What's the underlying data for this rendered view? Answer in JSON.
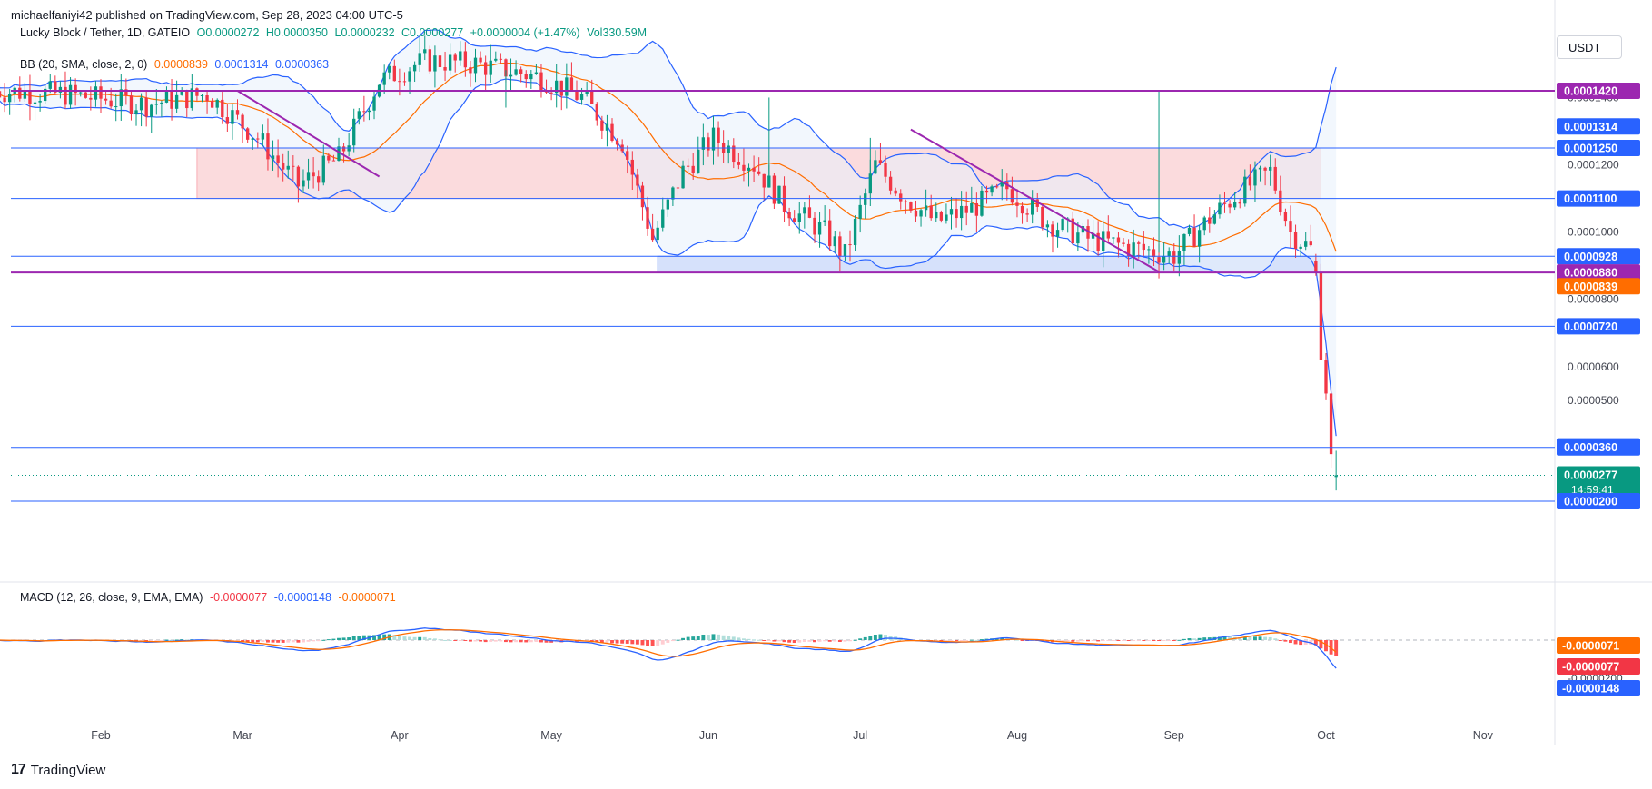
{
  "header": {
    "publisher": "michaelfaniyi42 published on TradingView.com, Sep 28, 2023 04:00 UTC-5"
  },
  "legend": {
    "symbol": "Lucky Block / Tether, 1D, GATEIO",
    "open": "O0.0000272",
    "high": "H0.0000350",
    "low": "L0.0000232",
    "close": "C0.0000277",
    "change": "+0.0000004 (+1.47%)",
    "volume": "Vol330.59M",
    "bb_label": "BB (20, SMA, close, 2, 0)",
    "bb_basis": "0.0000839",
    "bb_upper": "0.0001314",
    "bb_lower": "0.0000363",
    "macd_label": "MACD (12, 26, close, 9, EMA, EMA)",
    "macd_hist": "-0.0000077",
    "macd_line": "-0.0000148",
    "macd_signal": "-0.0000071"
  },
  "currency_button": "USDT",
  "footer": {
    "brand": "TradingView",
    "logo_glyph": "17"
  },
  "colors": {
    "up": "#089981",
    "down": "#f23645",
    "bb_basis": "#ff6d00",
    "bb_band": "#2962ff",
    "bb_fill": "#e8f1fc",
    "resistance_zone": "#fbd5d8",
    "support_zone": "#cfdcfb",
    "purple_line": "#9c27b0",
    "level_line": "#2962ff"
  },
  "chart_data": [
    {
      "type": "candlestick",
      "y_axis_ticks": [
        "0.0001400",
        "0.0001200",
        "0.0001000",
        "0.0000800",
        "0.0000600",
        "0.0000500",
        "0.0000200"
      ],
      "x_ticks": [
        "Feb",
        "Mar",
        "Apr",
        "May",
        "Jun",
        "Jul",
        "Aug",
        "Sep",
        "Oct",
        "Nov"
      ],
      "ylim": [
        2e-05,
        0.000142
      ],
      "price_labels": [
        {
          "value": 0.000142,
          "text": "0.0001420",
          "color": "#9c27b0"
        },
        {
          "value": 0.0001314,
          "text": "0.0001314",
          "color": "#2962ff"
        },
        {
          "value": 0.000125,
          "text": "0.0001250",
          "color": "#2962ff"
        },
        {
          "value": 0.00011,
          "text": "0.0001100",
          "color": "#2962ff"
        },
        {
          "value": 9.28e-05,
          "text": "0.0000928",
          "color": "#2962ff"
        },
        {
          "value": 8.8e-05,
          "text": "0.0000880",
          "color": "#9c27b0"
        },
        {
          "value": 8.39e-05,
          "text": "0.0000839",
          "color": "#ff6d00"
        },
        {
          "value": 7.2e-05,
          "text": "0.0000720",
          "color": "#2962ff"
        },
        {
          "value": 3.63e-05,
          "text": "0.0000363",
          "color": "#2962ff"
        },
        {
          "value": 3.6e-05,
          "text": "0.0000360",
          "color": "#2962ff"
        },
        {
          "value": 2.77e-05,
          "text": "0.0000277",
          "color": "#089981",
          "countdown": "14:59:41"
        },
        {
          "value": 2e-05,
          "text": "0.0000200",
          "color": "#2962ff"
        }
      ],
      "horizontal_levels": [
        {
          "value": 0.000142,
          "color": "#9c27b0"
        },
        {
          "value": 0.000125,
          "color": "#2962ff"
        },
        {
          "value": 0.00011,
          "color": "#2962ff"
        },
        {
          "value": 9.28e-05,
          "color": "#2962ff"
        },
        {
          "value": 8.8e-05,
          "color": "#9c27b0"
        },
        {
          "value": 7.2e-05,
          "color": "#2962ff"
        },
        {
          "value": 3.6e-05,
          "color": "#2962ff"
        },
        {
          "value": 2e-05,
          "color": "#2962ff"
        }
      ],
      "zones": [
        {
          "name": "resistance",
          "from_date": "Feb 20",
          "to_date": "Sep 30",
          "low": 0.00011,
          "high": 0.000125
        },
        {
          "name": "support",
          "from_date": "May 22",
          "to_date": "Sep 30",
          "low": 8.8e-05,
          "high": 9.28e-05
        }
      ],
      "trendlines": [
        {
          "from": [
            "Jul 11",
            0.0001305
          ],
          "to": [
            "Aug 29",
            8.82e-05
          ],
          "color": "#9c27b0"
        },
        {
          "from": [
            "Feb 28",
            0.000142
          ],
          "to": [
            "Mar 28",
            0.0001165
          ],
          "color": "#9c27b0"
        }
      ],
      "candles_summary": [
        {
          "month": "Jan",
          "close_range": [
            0.000138,
            0.000145
          ]
        },
        {
          "month": "Feb",
          "close_range": [
            0.000135,
            0.000142
          ]
        },
        {
          "month": "Mar",
          "close_range": [
            0.000112,
            0.000128
          ]
        },
        {
          "month": "Apr",
          "close_range": [
            0.000142,
            0.000152
          ]
        },
        {
          "month": "May",
          "close_range": [
            9.2e-05,
            0.000142
          ]
        },
        {
          "month": "Jun",
          "close_range": [
            8.6e-05,
            0.000131
          ]
        },
        {
          "month": "Jul",
          "close_range": [
            9.5e-05,
            0.000117
          ]
        },
        {
          "month": "Aug",
          "close_range": [
            8.8e-05,
            0.000108
          ]
        },
        {
          "month": "Sep",
          "close_range": [
            2.77e-05,
            0.000119
          ]
        }
      ],
      "last": {
        "date": "Sep 28",
        "open": 2.72e-05,
        "high": 3.5e-05,
        "low": 2.32e-05,
        "close": 2.77e-05
      }
    },
    {
      "type": "macd",
      "y_axis_ticks": [
        "-0.0000200"
      ],
      "values": {
        "histogram": -7.7e-06,
        "macd": -1.48e-05,
        "signal": -7.1e-06
      },
      "price_labels": [
        {
          "value": -7.1e-06,
          "text": "-0.0000071",
          "color": "#ff6d00"
        },
        {
          "value": -7.7e-06,
          "text": "-0.0000077",
          "color": "#f23645"
        },
        {
          "value": -1.48e-05,
          "text": "-0.0000148",
          "color": "#2962ff"
        }
      ]
    }
  ]
}
